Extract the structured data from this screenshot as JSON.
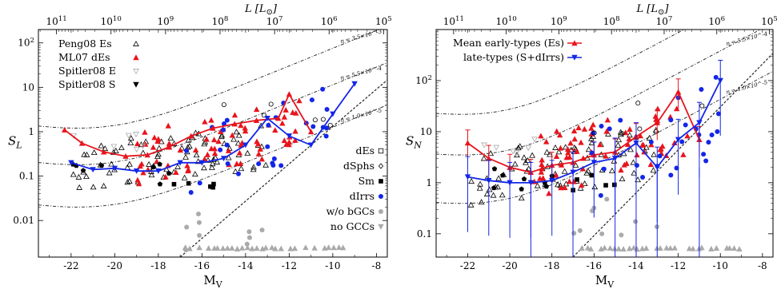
{
  "chart_data": [
    {
      "type": "scatter",
      "title": "",
      "xlabel": "M_V",
      "ylabel": "S_L",
      "top_axis_label": "L [L_sun]",
      "x_range": [
        -23.5,
        -7.5
      ],
      "y_range": [
        0.0015,
        200
      ],
      "y_scale": "log",
      "x_ticks": [
        "-22",
        "-20",
        "-18",
        "-16",
        "-14",
        "-12",
        "-10",
        "-8"
      ],
      "y_ticks": [
        "10^2",
        "10",
        "1",
        "0.1",
        "0.01"
      ],
      "top_ticks": [
        "10^11",
        "10^10",
        "10^9",
        "10^8",
        "10^7",
        "10^6",
        "10^5"
      ],
      "legend_top_left": [
        "Peng08 Es",
        "ML07 dEs",
        "Spitler08 E",
        "Spitler08 S"
      ],
      "legend_bottom_right": [
        "dEs",
        "dSphs",
        "Sm",
        "dIrrs",
        "w/o bGCs",
        "no GCCs"
      ],
      "eta_labels": [
        "η = 3.5×10^-3",
        "η = 5.5×10^-4",
        "η = 1.0×10^-5"
      ],
      "series": [
        {
          "name": "ML07 dEs",
          "style": "red-line-triangle",
          "x": [
            -22.3,
            -21.5,
            -20.5,
            -19.5,
            -18.5,
            -17.5,
            -16.5,
            -15.5,
            -14.5,
            -13.5,
            -12.5,
            -12.0,
            -11.0
          ],
          "y": [
            1.1,
            0.55,
            0.35,
            0.28,
            0.3,
            0.45,
            0.8,
            1.2,
            1.5,
            1.8,
            2.0,
            7.0,
            1.0
          ]
        },
        {
          "name": "dIrrs",
          "style": "blue-line-triangle",
          "x": [
            -22.0,
            -21.0,
            -20.0,
            -19.0,
            -18.0,
            -17.0,
            -16.0,
            -15.0,
            -14.0,
            -13.0,
            -12.0,
            -11.0,
            -10.0,
            -9.0
          ],
          "y": [
            0.2,
            0.14,
            0.15,
            0.13,
            0.13,
            0.2,
            0.2,
            0.25,
            0.5,
            2.0,
            0.8,
            0.5,
            2.5,
            12.0
          ]
        }
      ]
    },
    {
      "type": "scatter",
      "title": "",
      "xlabel": "M_V",
      "ylabel": "S_N",
      "top_axis_label": "L [L_sun]",
      "x_range": [
        -23.5,
        -7.5
      ],
      "y_range": [
        0.035,
        1000
      ],
      "y_scale": "log",
      "x_ticks": [
        "-22",
        "-20",
        "-18",
        "-16",
        "-14",
        "-12",
        "-10",
        "-8"
      ],
      "y_ticks": [
        "10^2",
        "10",
        "1",
        "0.1"
      ],
      "top_ticks": [
        "10^11",
        "10^10",
        "10^9",
        "10^8",
        "10^7",
        "10^6",
        "10^5"
      ],
      "legend": [
        "Mean early-types (Es)",
        "late-types (S+dIrrs)"
      ],
      "eta_labels": [
        "η = 3.5×10^-3",
        "η = 5.5×10^-4",
        "η = 1.0×10^-5"
      ],
      "series": [
        {
          "name": "Mean early-types (Es)",
          "style": "red-line-triangle",
          "x": [
            -22.0,
            -21.0,
            -20.0,
            -19.0,
            -18.0,
            -17.0,
            -16.0,
            -15.0,
            -14.0,
            -13.0,
            -12.0,
            -11.0
          ],
          "y": [
            6.0,
            3.0,
            2.0,
            1.6,
            2.2,
            2.5,
            3.5,
            4.0,
            8.0,
            15.0,
            60.0,
            7.0
          ]
        },
        {
          "name": "late-types (S+dIrrs)",
          "style": "blue-line-triangle",
          "x": [
            -22.0,
            -21.0,
            -20.0,
            -19.0,
            -18.0,
            -17.0,
            -16.0,
            -15.0,
            -14.0,
            -13.0,
            -12.0,
            -11.0,
            -10.0
          ],
          "y": [
            1.3,
            1.1,
            1.0,
            1.0,
            1.1,
            1.6,
            2.5,
            3.0,
            6.0,
            2.0,
            7.0,
            15.0,
            100.0
          ]
        }
      ]
    }
  ]
}
